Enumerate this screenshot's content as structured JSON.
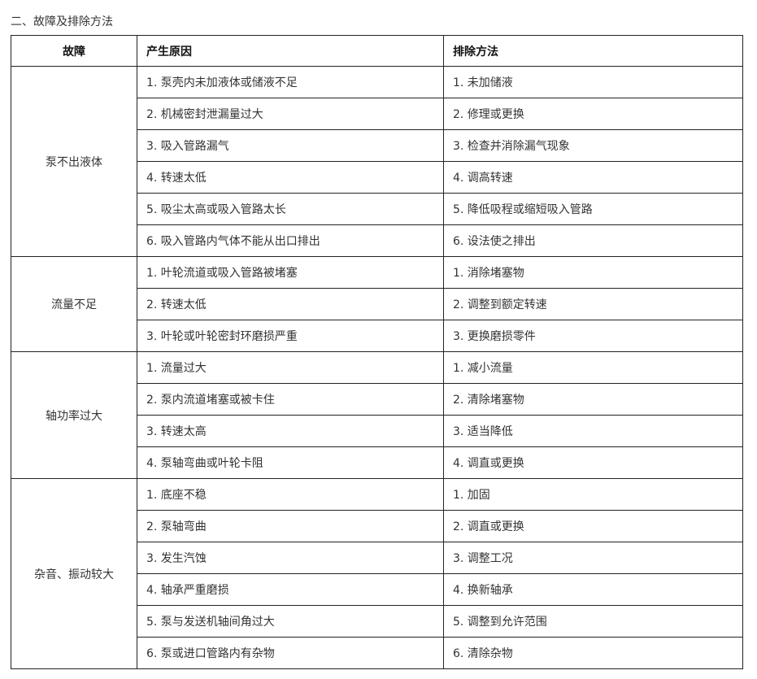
{
  "section_title": "二、故障及排除方法",
  "table": {
    "headers": [
      "故障",
      "产生原因",
      "排除方法"
    ],
    "groups": [
      {
        "fault": "泵不出液体",
        "rows": [
          {
            "cause": "1. 泵壳内未加液体或储液不足",
            "remedy": "1. 未加储液"
          },
          {
            "cause": "2. 机械密封泄漏量过大",
            "remedy": "2. 修理或更换"
          },
          {
            "cause": "3. 吸入管路漏气",
            "remedy": "3. 检查并消除漏气现象"
          },
          {
            "cause": "4. 转速太低",
            "remedy": "4. 调高转速"
          },
          {
            "cause": "5. 吸尘太高或吸入管路太长",
            "remedy": "5. 降低吸程或缩短吸入管路"
          },
          {
            "cause": "6. 吸入管路内气体不能从出口排出",
            "remedy": "6. 设法使之排出"
          }
        ]
      },
      {
        "fault": "流量不足",
        "rows": [
          {
            "cause": "1. 叶轮流道或吸入管路被堵塞",
            "remedy": "1. 消除堵塞物"
          },
          {
            "cause": "2. 转速太低",
            "remedy": "2. 调整到额定转速"
          },
          {
            "cause": "3. 叶轮或叶轮密封环磨损严重",
            "remedy": "3. 更换磨损零件"
          }
        ]
      },
      {
        "fault": "轴功率过大",
        "rows": [
          {
            "cause": "1. 流量过大",
            "remedy": "1. 减小流量"
          },
          {
            "cause": "2. 泵内流道堵塞或被卡住",
            "remedy": "2. 清除堵塞物"
          },
          {
            "cause": "3. 转速太高",
            "remedy": "3. 适当降低"
          },
          {
            "cause": "4. 泵轴弯曲或叶轮卡阻",
            "remedy": "4. 调直或更换"
          }
        ]
      },
      {
        "fault": "杂音、振动较大",
        "rows": [
          {
            "cause": "1. 底座不稳",
            "remedy": "1. 加固"
          },
          {
            "cause": "2. 泵轴弯曲",
            "remedy": "2. 调直或更换"
          },
          {
            "cause": "3. 发生汽蚀",
            "remedy": "3. 调整工况"
          },
          {
            "cause": "4. 轴承严重磨损",
            "remedy": "4. 换新轴承"
          },
          {
            "cause": "5. 泵与发送机轴间角过大",
            "remedy": "5. 调整到允许范围"
          },
          {
            "cause": "6. 泵或进口管路内有杂物",
            "remedy": "6. 清除杂物"
          }
        ]
      }
    ]
  }
}
